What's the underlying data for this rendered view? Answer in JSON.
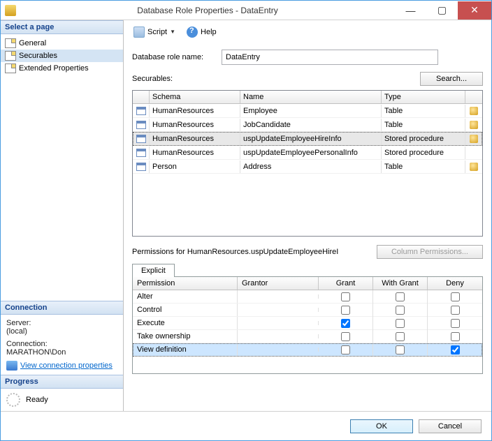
{
  "window": {
    "title": "Database Role Properties - DataEntry"
  },
  "sidebar": {
    "select_page": "Select a page",
    "pages": [
      {
        "label": "General",
        "selected": false
      },
      {
        "label": "Securables",
        "selected": true
      },
      {
        "label": "Extended Properties",
        "selected": false
      }
    ],
    "connection_title": "Connection",
    "server_label": "Server:",
    "server_value": "(local)",
    "connection_label": "Connection:",
    "connection_value": "MARATHON\\Don",
    "view_conn_link": "View connection properties",
    "progress_title": "Progress",
    "progress_status": "Ready"
  },
  "toolbar": {
    "script": "Script",
    "help": "Help"
  },
  "main": {
    "role_label": "Database role name:",
    "role_value": "DataEntry",
    "securables_label": "Securables:",
    "search_btn": "Search...",
    "grid_head": {
      "schema": "Schema",
      "name": "Name",
      "type": "Type"
    },
    "securables": [
      {
        "schema": "HumanResources",
        "name": "Employee",
        "type": "Table",
        "selected": false,
        "act": true
      },
      {
        "schema": "HumanResources",
        "name": "JobCandidate",
        "type": "Table",
        "selected": false,
        "act": true
      },
      {
        "schema": "HumanResources",
        "name": "uspUpdateEmployeeHireInfo",
        "type": "Stored procedure",
        "selected": true,
        "act": true
      },
      {
        "schema": "HumanResources",
        "name": "uspUpdateEmployeePersonalInfo",
        "type": "Stored procedure",
        "selected": false,
        "act": false
      },
      {
        "schema": "Person",
        "name": "Address",
        "type": "Table",
        "selected": false,
        "act": true
      }
    ],
    "permissions_for": "Permissions for HumanResources.uspUpdateEmployeeHireI",
    "column_perms_btn": "Column Permissions...",
    "tab_explicit": "Explicit",
    "perm_head": {
      "permission": "Permission",
      "grantor": "Grantor",
      "grant": "Grant",
      "with_grant": "With Grant",
      "deny": "Deny"
    },
    "permissions": [
      {
        "permission": "Alter",
        "grantor": "",
        "grant": false,
        "with_grant": false,
        "deny": false,
        "selected": false
      },
      {
        "permission": "Control",
        "grantor": "",
        "grant": false,
        "with_grant": false,
        "deny": false,
        "selected": false
      },
      {
        "permission": "Execute",
        "grantor": "",
        "grant": true,
        "with_grant": false,
        "deny": false,
        "selected": false
      },
      {
        "permission": "Take ownership",
        "grantor": "",
        "grant": false,
        "with_grant": false,
        "deny": false,
        "selected": false
      },
      {
        "permission": "View definition",
        "grantor": "",
        "grant": false,
        "with_grant": false,
        "deny": true,
        "selected": true
      }
    ]
  },
  "footer": {
    "ok": "OK",
    "cancel": "Cancel"
  }
}
